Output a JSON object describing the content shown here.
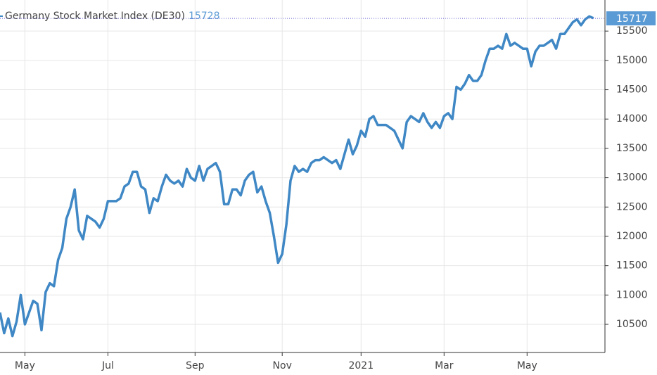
{
  "chart_data": {
    "type": "line",
    "title": "Germany Stock Market Index (DE30)",
    "last_value": 15728,
    "current_value": 15717,
    "color": "#3f88c5",
    "grid": true,
    "ylim": [
      10020,
      16030
    ],
    "yticks": [
      10500,
      11000,
      11500,
      12000,
      12500,
      13000,
      13500,
      14000,
      14500,
      15000,
      15500
    ],
    "categories": [
      null,
      null,
      null,
      null,
      null,
      null,
      "May",
      null,
      null,
      null,
      null,
      null,
      null,
      null,
      null,
      null,
      null,
      null,
      null,
      null,
      null,
      null,
      null,
      null,
      null,
      null,
      "Jul",
      null,
      null,
      null,
      null,
      null,
      null,
      null,
      null,
      null,
      null,
      null,
      null,
      null,
      null,
      null,
      null,
      null,
      null,
      null,
      null,
      "Sep",
      null,
      null,
      null,
      null,
      null,
      null,
      null,
      null,
      null,
      null,
      null,
      null,
      null,
      null,
      null,
      null,
      null,
      null,
      null,
      null,
      "Nov",
      null,
      null,
      null,
      null,
      null,
      null,
      null,
      null,
      null,
      null,
      null,
      null,
      null,
      null,
      null,
      null,
      null,
      null,
      "2021",
      null,
      null,
      null,
      null,
      null,
      null,
      null,
      null,
      null,
      null,
      null,
      null,
      null,
      null,
      null,
      null,
      null,
      null,
      null,
      "Mar",
      null,
      null,
      null,
      null,
      null,
      null,
      null,
      null,
      null,
      null,
      null,
      null,
      null,
      null,
      null,
      null,
      null,
      null,
      null,
      "May",
      null,
      null,
      null,
      null,
      null,
      null,
      null,
      null,
      null,
      null,
      null,
      null,
      null,
      null,
      null,
      null
    ],
    "values": [
      10700,
      10350,
      10600,
      10300,
      10550,
      11000,
      10500,
      10700,
      10900,
      10850,
      10400,
      11050,
      11200,
      11150,
      11600,
      11800,
      12300,
      12500,
      12800,
      12100,
      11950,
      12350,
      12300,
      12250,
      12150,
      12300,
      12600,
      12600,
      12600,
      12650,
      12850,
      12900,
      13100,
      13100,
      12850,
      12800,
      12400,
      12650,
      12600,
      12850,
      13050,
      12950,
      12900,
      12950,
      12850,
      13150,
      13000,
      12950,
      13200,
      12950,
      13150,
      13200,
      13250,
      13100,
      12550,
      12550,
      12800,
      12800,
      12700,
      12950,
      13050,
      13100,
      12750,
      12850,
      12600,
      12400,
      12000,
      11550,
      11700,
      12200,
      12950,
      13200,
      13100,
      13150,
      13100,
      13250,
      13300,
      13300,
      13350,
      13300,
      13250,
      13300,
      13150,
      13400,
      13650,
      13400,
      13550,
      13800,
      13700,
      14000,
      14050,
      13900,
      13900,
      13900,
      13850,
      13800,
      13650,
      13500,
      13950,
      14050,
      14000,
      13950,
      14100,
      13950,
      13850,
      13950,
      13850,
      14050,
      14100,
      14000,
      14550,
      14500,
      14600,
      14750,
      14650,
      14650,
      14750,
      15000,
      15200,
      15200,
      15250,
      15200,
      15450,
      15250,
      15300,
      15250,
      15200,
      15200,
      14900,
      15150,
      15250,
      15250,
      15300,
      15350,
      15200,
      15450,
      15450,
      15550,
      15650,
      15700,
      15600,
      15700,
      15750,
      15720
    ]
  }
}
